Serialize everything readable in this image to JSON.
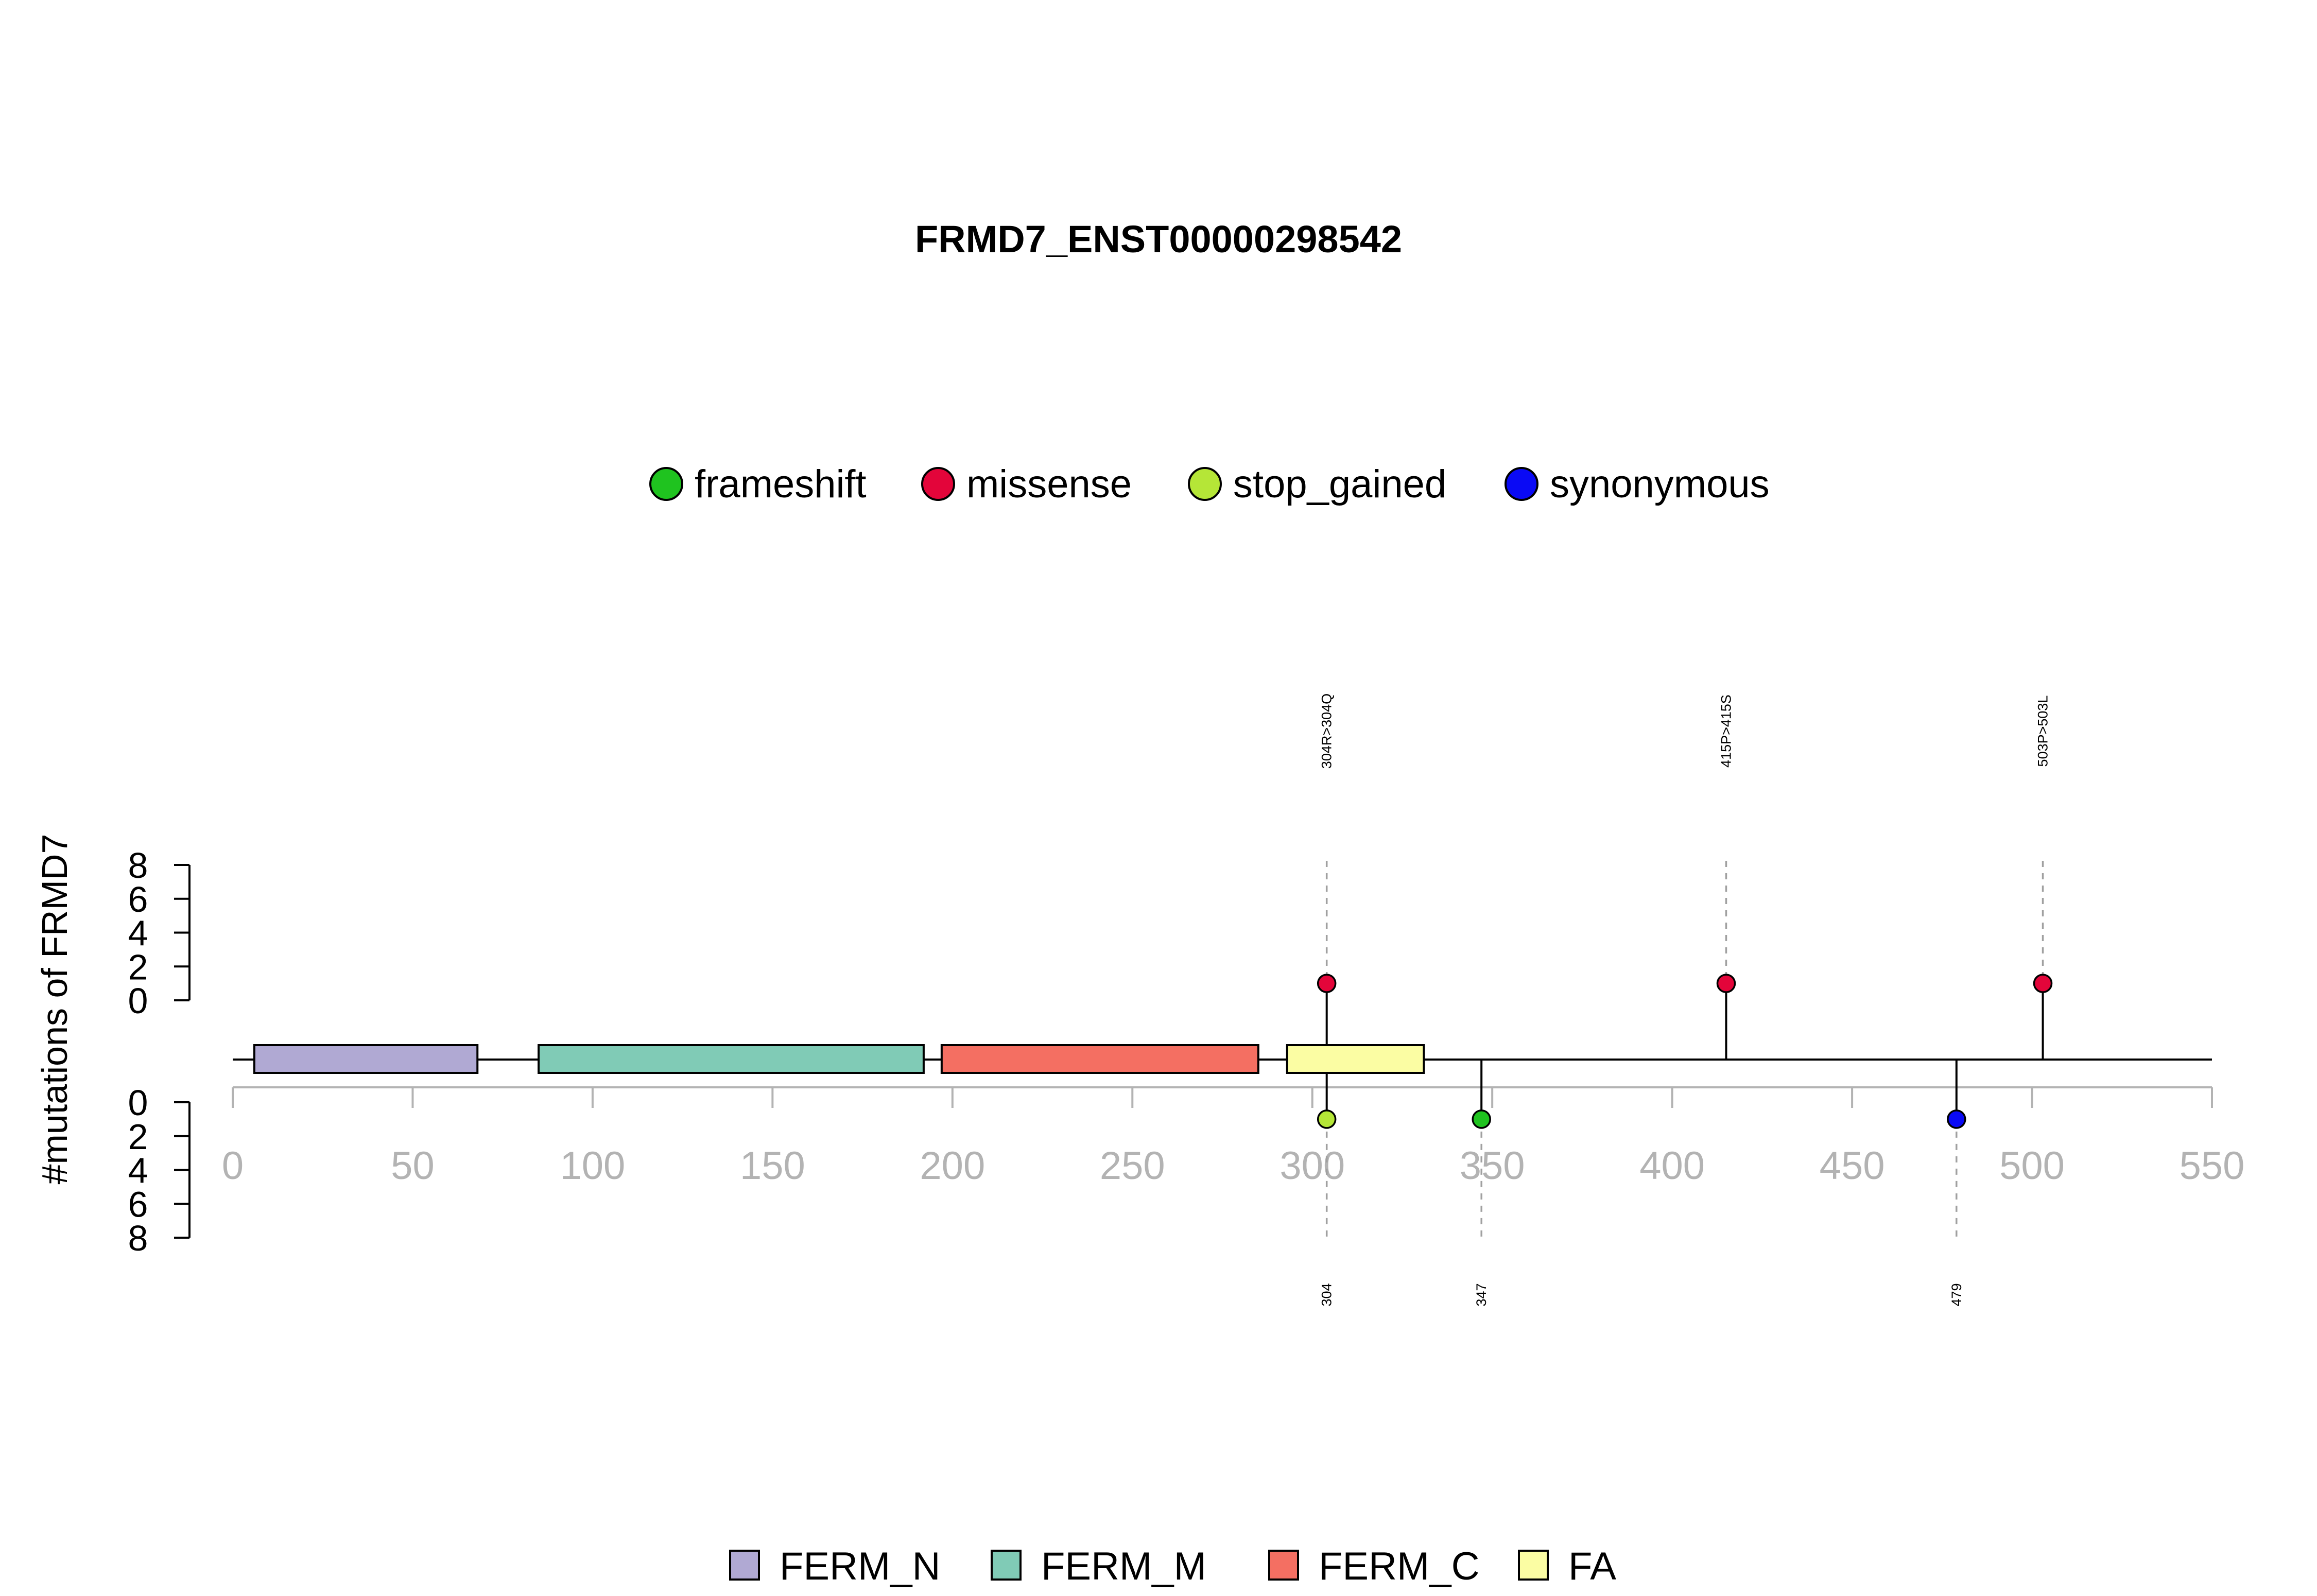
{
  "chart_data": {
    "type": "lollipop",
    "title": "FRMD7_ENST00000298542",
    "ylabel": "#mutations of FRMD7",
    "xlim": [
      0,
      550
    ],
    "xticks": [
      "0",
      "50",
      "100",
      "150",
      "200",
      "250",
      "300",
      "350",
      "400",
      "450",
      "500",
      "550"
    ],
    "ylim": [
      0,
      8
    ],
    "yticks_top": [
      "8",
      "6",
      "4",
      "2",
      "0"
    ],
    "yticks_bottom": [
      "0",
      "2",
      "4",
      "6",
      "8"
    ],
    "mutation_types": [
      {
        "name": "frameshift",
        "color": "#1fc31f"
      },
      {
        "name": "missense",
        "color": "#e3053a"
      },
      {
        "name": "stop_gained",
        "color": "#b5e637"
      },
      {
        "name": "synonymous",
        "color": "#0a0af5"
      }
    ],
    "domains": [
      {
        "name": "FERM_N",
        "start": 6,
        "end": 68,
        "color": "#b0a9d3"
      },
      {
        "name": "FERM_M",
        "start": 85,
        "end": 192,
        "color": "#80cbb6"
      },
      {
        "name": "FERM_C",
        "start": 197,
        "end": 285,
        "color": "#f46f62"
      },
      {
        "name": "FA",
        "start": 293,
        "end": 331,
        "color": "#fbfda3"
      }
    ],
    "mutations_top": [
      {
        "position": 304,
        "count": 1,
        "type": "missense",
        "label": "304R>304Q"
      },
      {
        "position": 415,
        "count": 1,
        "type": "missense",
        "label": "415P>415S"
      },
      {
        "position": 503,
        "count": 1,
        "type": "missense",
        "label": "503P>503L"
      }
    ],
    "mutations_bottom": [
      {
        "position": 304,
        "count": 1,
        "type": "stop_gained",
        "label": "304"
      },
      {
        "position": 347,
        "count": 1,
        "type": "frameshift",
        "label": "347"
      },
      {
        "position": 479,
        "count": 1,
        "type": "synonymous",
        "label": "479"
      }
    ]
  }
}
